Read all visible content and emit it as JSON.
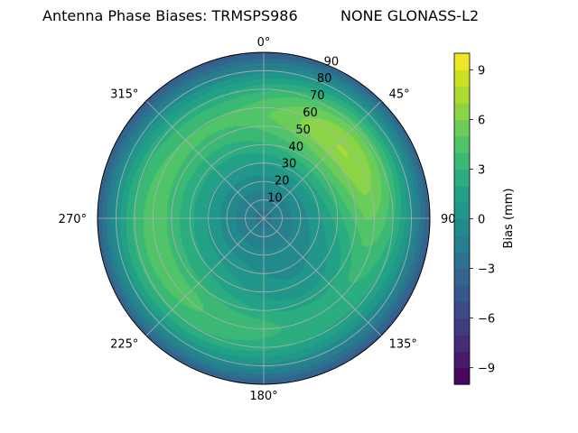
{
  "chart_data": {
    "type": "heatmap",
    "projection": "polar",
    "title": "Antenna Phase Biases: TRMSPS986",
    "subtitle": "NONE GLONASS-L2",
    "azimuth_ticks": [
      "0°",
      "45°",
      "90°",
      "135°",
      "180°",
      "225°",
      "270°",
      "315°"
    ],
    "azimuth_values": [
      0,
      45,
      90,
      135,
      180,
      225,
      270,
      315
    ],
    "zenith_ticks": [
      "10",
      "20",
      "30",
      "40",
      "50",
      "60",
      "70",
      "80",
      "90"
    ],
    "zenith_values": [
      10,
      20,
      30,
      40,
      50,
      60,
      70,
      80,
      90
    ],
    "zenith_range": [
      0,
      90
    ],
    "azimuth_direction": "clockwise",
    "azimuth_zero": "top",
    "grid": true,
    "colorbar": {
      "label": "Bias (mm)",
      "colormap": "viridis",
      "range": [
        -10,
        10
      ],
      "levels": 20,
      "ticks": [
        "9",
        "6",
        "3",
        "0",
        "−3",
        "−6",
        "−9"
      ],
      "tick_values": [
        9,
        6,
        3,
        0,
        -3,
        -6,
        -9
      ]
    },
    "field_description_points": [
      {
        "azimuth": 45,
        "zenith": 60,
        "bias": 6
      },
      {
        "azimuth": 90,
        "zenith": 60,
        "bias": 5
      },
      {
        "azimuth": 180,
        "zenith": 70,
        "bias": 5
      },
      {
        "azimuth": 225,
        "zenith": 70,
        "bias": 5
      },
      {
        "azimuth": 270,
        "zenith": 70,
        "bias": 5
      },
      {
        "azimuth": 315,
        "zenith": 60,
        "bias": 4
      },
      {
        "azimuth": 0,
        "zenith": 10,
        "bias": -1
      },
      {
        "azimuth": 0,
        "zenith": 88,
        "bias": -2
      }
    ]
  }
}
